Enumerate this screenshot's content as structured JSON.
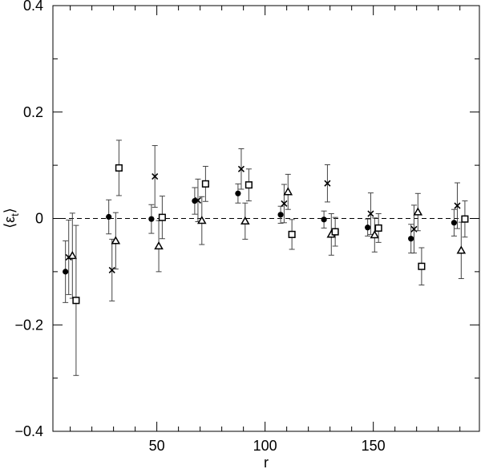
{
  "chart_data": {
    "type": "scatter",
    "xlabel": "r",
    "ylabel": "⟨ε",
    "ylabel_sub": "t",
    "ylabel_close": "⟩",
    "xlim": [
      2,
      199
    ],
    "ylim": [
      -0.4,
      0.4
    ],
    "x_ticks": [
      50,
      100,
      150
    ],
    "x_tick_labels": [
      "50",
      "100",
      "150"
    ],
    "x_minor_ticks": [
      10,
      20,
      30,
      40,
      60,
      70,
      80,
      90,
      110,
      120,
      130,
      140,
      160,
      170,
      180,
      190
    ],
    "y_ticks": [
      -0.4,
      -0.2,
      0,
      0.2,
      0.4
    ],
    "y_tick_labels": [
      "−0.4",
      "−0.2",
      "0",
      "0.2",
      "0.4"
    ],
    "y_minor_ticks": [
      -0.3,
      -0.1,
      0.1,
      0.3
    ],
    "reference_line": {
      "y": 0,
      "style": "dashed"
    },
    "grid": false,
    "legend": "none",
    "series": [
      {
        "marker": "filled-circle",
        "points": [
          {
            "x": 7.8,
            "y": -0.1,
            "err": 0.058
          },
          {
            "x": 27.8,
            "y": 0.003,
            "err": 0.032
          },
          {
            "x": 47.5,
            "y": -0.001,
            "err": 0.027
          },
          {
            "x": 67.5,
            "y": 0.033,
            "err": 0.025
          },
          {
            "x": 87.5,
            "y": 0.047,
            "err": 0.018
          },
          {
            "x": 107.2,
            "y": 0.007,
            "err": 0.016
          },
          {
            "x": 127.2,
            "y": -0.002,
            "err": 0.016
          },
          {
            "x": 147.4,
            "y": -0.017,
            "err": 0.016
          },
          {
            "x": 167.4,
            "y": -0.038,
            "err": 0.027
          },
          {
            "x": 187.3,
            "y": -0.008,
            "err": 0.025
          }
        ]
      },
      {
        "marker": "cross",
        "points": [
          {
            "x": 9.3,
            "y": -0.073,
            "err": 0.07
          },
          {
            "x": 29.3,
            "y": -0.097,
            "err": 0.058
          },
          {
            "x": 49.1,
            "y": 0.079,
            "err": 0.058
          },
          {
            "x": 69.0,
            "y": 0.034,
            "err": 0.04
          },
          {
            "x": 89.0,
            "y": 0.093,
            "err": 0.038
          },
          {
            "x": 108.8,
            "y": 0.028,
            "err": 0.036
          },
          {
            "x": 128.8,
            "y": 0.066,
            "err": 0.035
          },
          {
            "x": 148.8,
            "y": 0.009,
            "err": 0.039
          },
          {
            "x": 168.8,
            "y": -0.02,
            "err": 0.045
          },
          {
            "x": 188.8,
            "y": 0.024,
            "err": 0.043
          }
        ]
      },
      {
        "marker": "open-triangle",
        "points": [
          {
            "x": 11.0,
            "y": -0.07,
            "err": 0.08
          },
          {
            "x": 31.0,
            "y": -0.042,
            "err": 0.053
          },
          {
            "x": 50.9,
            "y": -0.052,
            "err": 0.048
          },
          {
            "x": 70.8,
            "y": -0.004,
            "err": 0.045
          },
          {
            "x": 90.8,
            "y": -0.005,
            "err": 0.034
          },
          {
            "x": 110.6,
            "y": 0.05,
            "err": 0.033
          },
          {
            "x": 130.6,
            "y": -0.03,
            "err": 0.039
          },
          {
            "x": 150.6,
            "y": -0.031,
            "err": 0.032
          },
          {
            "x": 170.6,
            "y": 0.012,
            "err": 0.035
          },
          {
            "x": 190.6,
            "y": -0.06,
            "err": 0.053
          }
        ]
      },
      {
        "marker": "open-square",
        "points": [
          {
            "x": 12.7,
            "y": -0.154,
            "err": 0.141
          },
          {
            "x": 32.5,
            "y": 0.095,
            "err": 0.052
          },
          {
            "x": 52.5,
            "y": 0.002,
            "err": 0.04
          },
          {
            "x": 72.5,
            "y": 0.065,
            "err": 0.033
          },
          {
            "x": 92.5,
            "y": 0.063,
            "err": 0.03
          },
          {
            "x": 112.4,
            "y": -0.03,
            "err": 0.028
          },
          {
            "x": 132.4,
            "y": -0.025,
            "err": 0.027
          },
          {
            "x": 152.4,
            "y": -0.018,
            "err": 0.027
          },
          {
            "x": 172.3,
            "y": -0.09,
            "err": 0.035
          },
          {
            "x": 192.3,
            "y": -0.001,
            "err": 0.034
          }
        ]
      }
    ]
  }
}
